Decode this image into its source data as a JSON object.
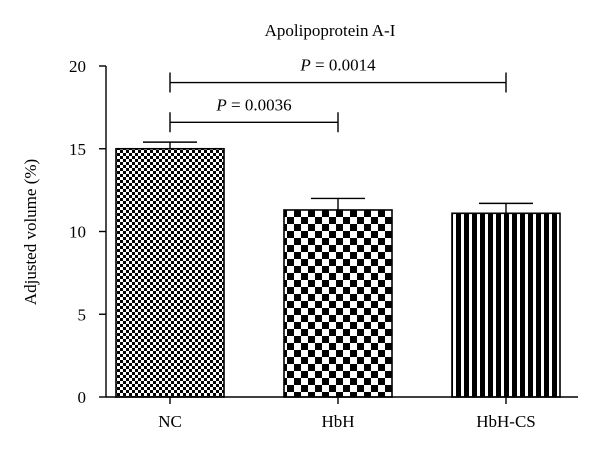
{
  "chart_data": {
    "type": "bar",
    "title": "Apolipoprotein A-I",
    "xlabel": "",
    "ylabel": "Adjusted volume (%)",
    "ylim": [
      0,
      20
    ],
    "yticks": [
      0,
      5,
      10,
      15,
      20
    ],
    "categories": [
      "NC",
      "HbH",
      "HbH-CS"
    ],
    "values": [
      15.0,
      11.3,
      11.1
    ],
    "errors": [
      0.4,
      0.7,
      0.6
    ],
    "patterns": [
      "fine-checker",
      "coarse-checker",
      "vertical-stripes"
    ],
    "grid": false,
    "annotations": [
      {
        "from": "NC",
        "to": "HbH",
        "level": 16.6,
        "p_label": "P",
        "p_value": "= 0.0036"
      },
      {
        "from": "NC",
        "to": "HbH-CS",
        "level": 19.0,
        "p_label": "P",
        "p_value": "= 0.0014"
      }
    ]
  }
}
